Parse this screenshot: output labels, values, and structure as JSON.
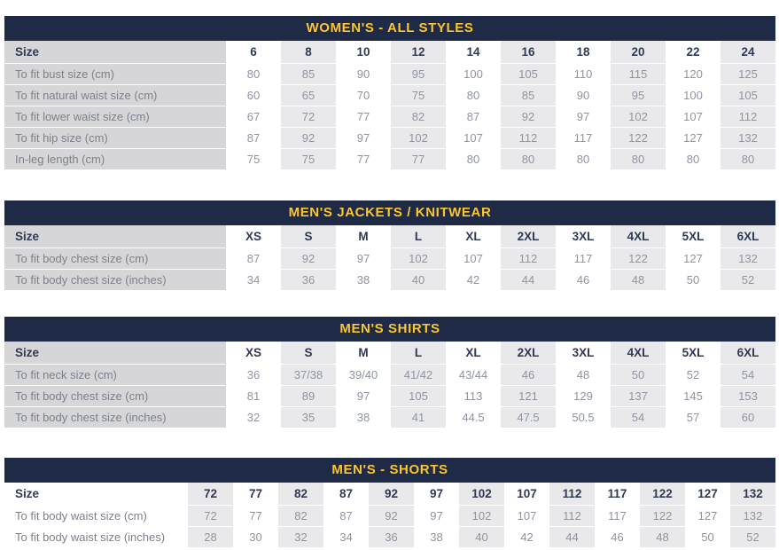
{
  "colors": {
    "header_bar_bg": "#1f2a47",
    "header_title_text": "#fdc62f",
    "label_column_bg": "#d6d6d8",
    "shaded_column_bg": "#e9e9eb",
    "size_text": "#2f3a52",
    "body_text": "#7b818d",
    "value_text": "#8e94a2",
    "page_bg": "#ffffff"
  },
  "tables": [
    {
      "title": "WOMEN'S - ALL STYLES",
      "size_row_label": "Size",
      "label_col_width": 250,
      "label_col_shaded": true,
      "shaded_columns": [
        1,
        3,
        5,
        7,
        9
      ],
      "columns": [
        "6",
        "8",
        "10",
        "12",
        "14",
        "16",
        "18",
        "20",
        "22",
        "24"
      ],
      "rows": [
        {
          "label": "To fit bust size (cm)",
          "values": [
            "80",
            "85",
            "90",
            "95",
            "100",
            "105",
            "110",
            "115",
            "120",
            "125"
          ]
        },
        {
          "label": "To fit natural waist size (cm)",
          "values": [
            "60",
            "65",
            "70",
            "75",
            "80",
            "85",
            "90",
            "95",
            "100",
            "105"
          ]
        },
        {
          "label": "To fit lower waist size (cm)",
          "values": [
            "67",
            "72",
            "77",
            "82",
            "87",
            "92",
            "97",
            "102",
            "107",
            "112"
          ]
        },
        {
          "label": "To fit hip size (cm)",
          "values": [
            "87",
            "92",
            "97",
            "102",
            "107",
            "112",
            "117",
            "122",
            "127",
            "132"
          ]
        },
        {
          "label": "In-leg length (cm)",
          "values": [
            "75",
            "75",
            "77",
            "77",
            "80",
            "80",
            "80",
            "80",
            "80",
            "80"
          ]
        }
      ]
    },
    {
      "title": "MEN'S JACKETS / KNITWEAR",
      "size_row_label": "Size",
      "label_col_width": 250,
      "label_col_shaded": true,
      "shaded_columns": [
        1,
        3,
        5,
        7,
        9
      ],
      "columns": [
        "XS",
        "S",
        "M",
        "L",
        "XL",
        "2XL",
        "3XL",
        "4XL",
        "5XL",
        "6XL"
      ],
      "rows": [
        {
          "label": "To fit body chest size (cm)",
          "values": [
            "87",
            "92",
            "97",
            "102",
            "107",
            "112",
            "117",
            "122",
            "127",
            "132"
          ]
        },
        {
          "label": "To fit body chest size (inches)",
          "values": [
            "34",
            "36",
            "38",
            "40",
            "42",
            "44",
            "46",
            "48",
            "50",
            "52"
          ]
        }
      ]
    },
    {
      "title": "MEN'S SHIRTS",
      "size_row_label": "Size",
      "label_col_width": 250,
      "label_col_shaded": true,
      "shaded_columns": [
        1,
        3,
        5,
        7,
        9
      ],
      "columns": [
        "XS",
        "S",
        "M",
        "L",
        "XL",
        "2XL",
        "3XL",
        "4XL",
        "5XL",
        "6XL"
      ],
      "rows": [
        {
          "label": "To fit neck size (cm)",
          "values": [
            "36",
            "37/38",
            "39/40",
            "41/42",
            "43/44",
            "46",
            "48",
            "50",
            "52",
            "54"
          ]
        },
        {
          "label": "To fit body chest size (cm)",
          "values": [
            "81",
            "89",
            "97",
            "105",
            "113",
            "121",
            "129",
            "137",
            "145",
            "153"
          ]
        },
        {
          "label": "To fit body chest size (inches)",
          "values": [
            "32",
            "35",
            "38",
            "41",
            "44.5",
            "47.5",
            "50.5",
            "54",
            "57",
            "60"
          ]
        }
      ]
    },
    {
      "title": "MEN'S - SHORTS",
      "size_row_label": "Size",
      "label_col_width": 207,
      "label_col_shaded": false,
      "shaded_columns": [
        0,
        2,
        4,
        6,
        8,
        10,
        12
      ],
      "columns": [
        "72",
        "77",
        "82",
        "87",
        "92",
        "97",
        "102",
        "107",
        "112",
        "117",
        "122",
        "127",
        "132"
      ],
      "rows": [
        {
          "label": "To fit body waist size (cm)",
          "values": [
            "72",
            "77",
            "82",
            "87",
            "92",
            "97",
            "102",
            "107",
            "112",
            "117",
            "122",
            "127",
            "132"
          ]
        },
        {
          "label": "To fit body waist size (inches)",
          "values": [
            "28",
            "30",
            "32",
            "34",
            "36",
            "38",
            "40",
            "42",
            "44",
            "46",
            "48",
            "50",
            "52"
          ]
        }
      ]
    }
  ]
}
